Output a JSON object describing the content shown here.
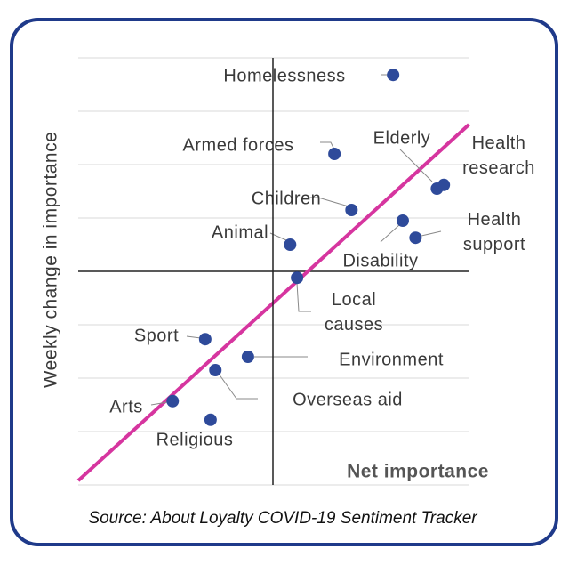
{
  "chart_data": {
    "type": "scatter",
    "y_label": "Weekly change in importance",
    "x_label": "Net importance",
    "source": "Source: About Loyalty COVID-19 Sentiment Tracker",
    "point_labels": [
      "Homelessness",
      "Armed forces",
      "Elderly",
      "Health research",
      "Children",
      "Disability",
      "Health support",
      "Animal",
      "Local causes",
      "Sport",
      "Environment",
      "Overseas aid",
      "Arts",
      "Religious"
    ],
    "x": [
      2.25,
      1.15,
      3.07,
      3.2,
      1.47,
      2.43,
      2.67,
      0.32,
      0.45,
      -1.27,
      -0.47,
      -1.08,
      -1.88,
      -1.17
    ],
    "values": [
      3.68,
      2.2,
      1.55,
      1.62,
      1.15,
      0.95,
      0.63,
      0.5,
      -0.12,
      -1.27,
      -1.6,
      -1.85,
      -2.43,
      -2.78
    ],
    "color": "#2e4a9a",
    "trend_line": {
      "x": [
        -3.65,
        3.67
      ],
      "y": [
        -3.92,
        2.75
      ],
      "color": "#d6359f"
    },
    "xlim": [
      -3.65,
      3.68
    ],
    "ylim": [
      -4,
      4
    ],
    "yticks": [
      -4,
      -3,
      -2,
      -1,
      0,
      1,
      2,
      3,
      4
    ],
    "grid": true
  }
}
